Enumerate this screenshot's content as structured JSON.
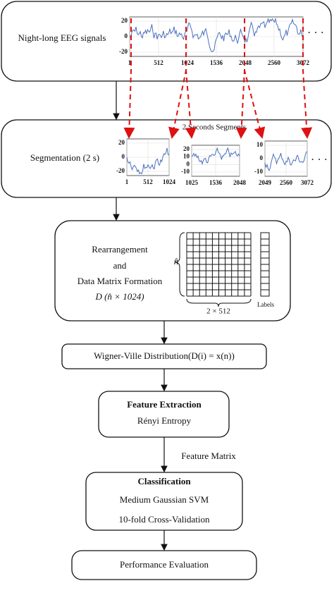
{
  "eeg": {
    "label": "Night-long EEG signals",
    "yticks": [
      "20",
      "0",
      "-20"
    ],
    "xticks": [
      "1",
      "512",
      "1024",
      "1536",
      "2048",
      "2560",
      "3072"
    ],
    "ellipsis": "· · ·"
  },
  "segmentation": {
    "label": "Segmentation (2 s)",
    "caption": "2 Seconds Segments",
    "ellipsis": "· · ·",
    "segments": [
      {
        "yticks": [
          "20",
          "0",
          "-20"
        ],
        "xticks": [
          "1",
          "512",
          "1024"
        ]
      },
      {
        "yticks": [
          "20",
          "10",
          "0",
          "-10"
        ],
        "xticks": [
          "1025",
          "1536",
          "2048"
        ]
      },
      {
        "yticks": [
          "10",
          "0",
          "-10"
        ],
        "xticks": [
          "2049",
          "2560",
          "3072"
        ]
      }
    ]
  },
  "matrix": {
    "lines": [
      "Rearrangement",
      "and",
      "Data Matrix Formation",
      "D (n̂ × 1024)"
    ],
    "rows_label": "n̂",
    "cols_label": "2 × 512",
    "labels_label": "Labels"
  },
  "wvd": "Wigner-Ville Distribution(D(i) = x(n))",
  "feature_extraction": {
    "title": "Feature Extraction",
    "method": "Rényi Entropy"
  },
  "edge_label": "Feature Matrix",
  "classification": {
    "title": "Classification",
    "lines": [
      "Medium Gaussian SVM",
      "10-fold Cross-Validation"
    ]
  },
  "evaluation": "Performance Evaluation"
}
